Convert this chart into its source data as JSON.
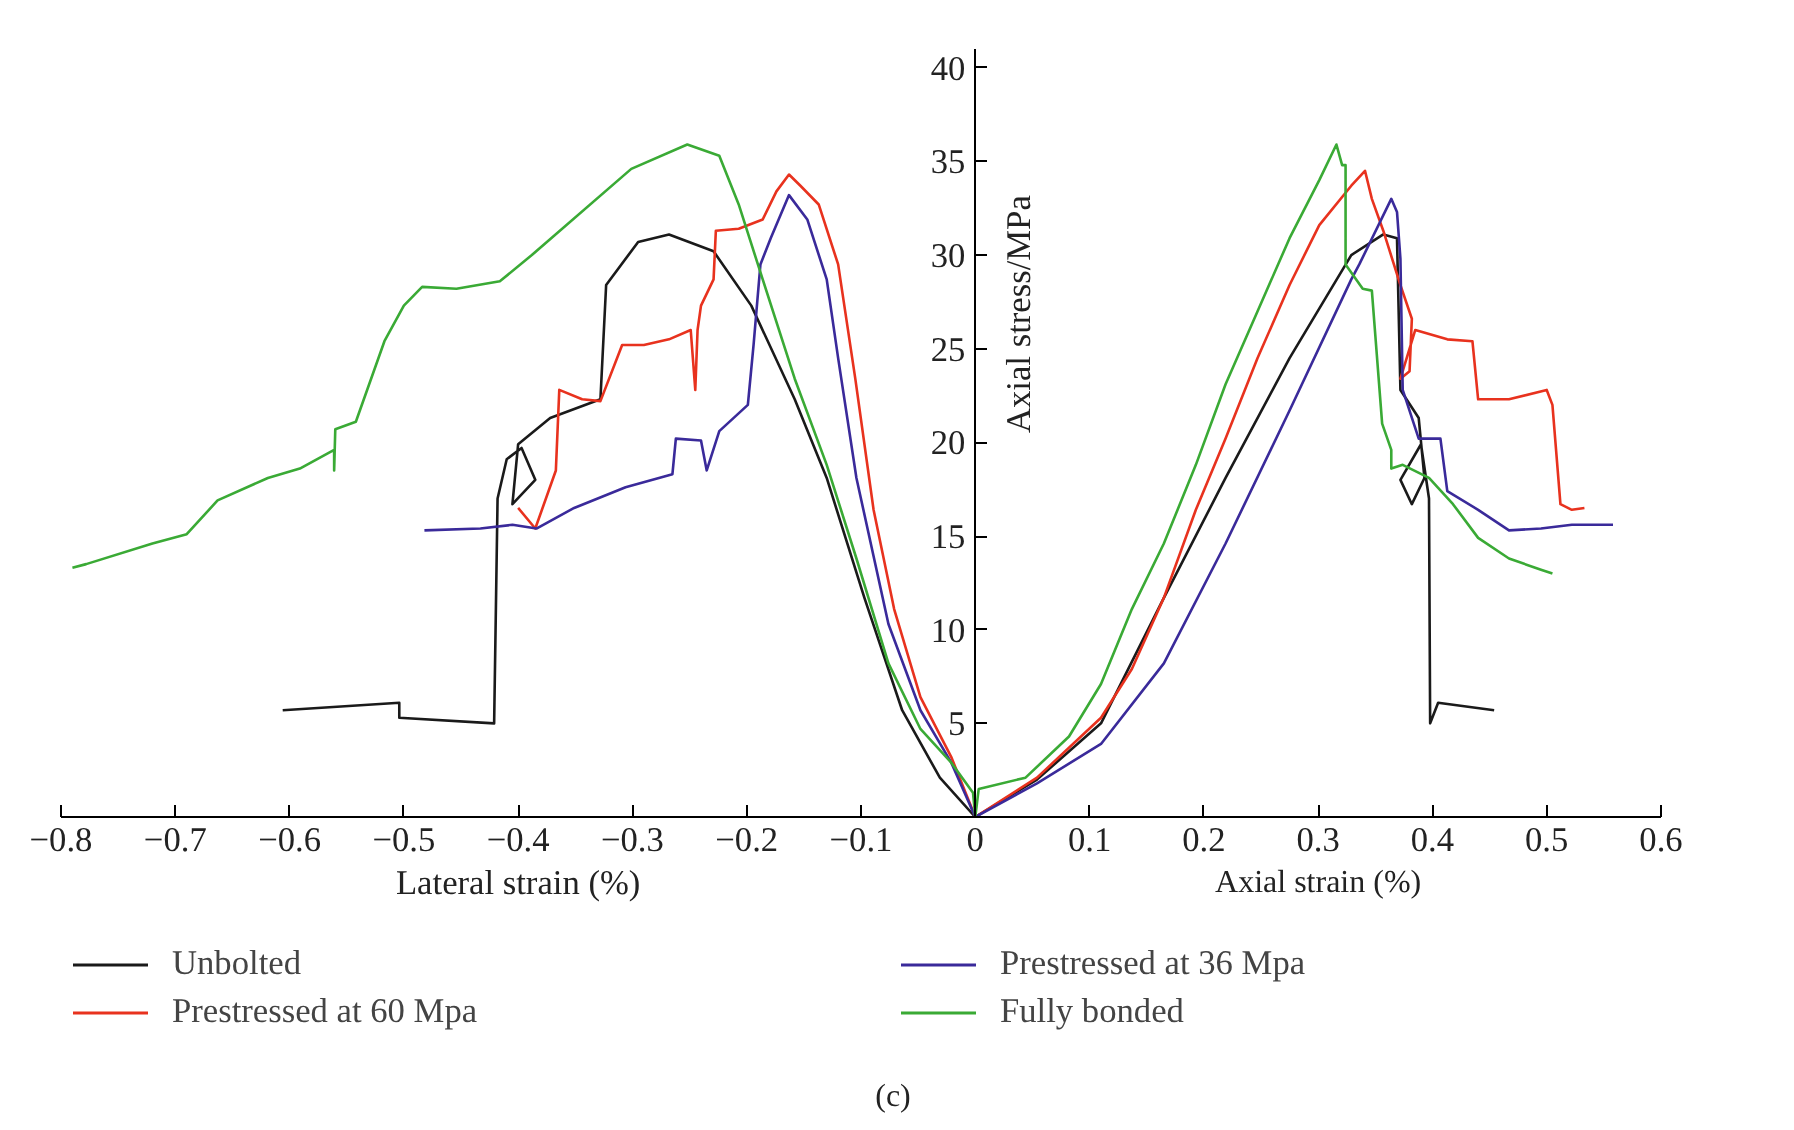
{
  "chart_data": {
    "type": "line",
    "xlabel": "Lateral strain (%)",
    "ylabel": "Axial stress/MPa",
    "annotations": [
      "Axial strain (%)",
      "(c)"
    ],
    "xlim": [
      -0.8,
      0.6
    ],
    "ylim": [
      0,
      41
    ],
    "xticks": [
      {
        "value": -0.8,
        "label": "−0.8"
      },
      {
        "value": -0.7,
        "label": "−0.7"
      },
      {
        "value": -0.6,
        "label": "−0.6"
      },
      {
        "value": -0.5,
        "label": "−0.5"
      },
      {
        "value": -0.4,
        "label": "−0.4"
      },
      {
        "value": -0.3,
        "label": "−0.3"
      },
      {
        "value": -0.2,
        "label": "−0.2"
      },
      {
        "value": -0.1,
        "label": "−0.1"
      },
      0,
      0.1,
      0.2,
      0.3,
      0.4,
      0.5,
      0.6
    ],
    "yticks": [
      5,
      10,
      15,
      20,
      25,
      30,
      35,
      40
    ],
    "grid": false,
    "legend": "bottom",
    "marker": "none",
    "line_style": "solid",
    "series": [
      {
        "name": "Unbolted",
        "color": "#1a1a1a",
        "x": [
          -0.606,
          -0.504,
          -0.504,
          -0.421,
          -0.418,
          -0.41,
          -0.397,
          -0.385,
          -0.405,
          -0.4,
          -0.372,
          -0.328,
          -0.323,
          -0.295,
          -0.268,
          -0.229,
          -0.196,
          -0.158,
          -0.13,
          -0.097,
          -0.064,
          -0.031,
          0,
          0.054,
          0.11,
          0.165,
          0.219,
          0.275,
          0.329,
          0.357,
          0.369,
          0.372,
          0.388,
          0.393,
          0.382,
          0.372,
          0.39,
          0.397,
          0.398,
          0.405,
          0.454
        ],
        "values": [
          5.7,
          6.1,
          5.3,
          5.0,
          17.0,
          19.1,
          19.7,
          18.0,
          16.7,
          19.9,
          21.3,
          22.3,
          28.4,
          30.7,
          31.1,
          30.2,
          27.3,
          22.3,
          18.1,
          11.7,
          5.7,
          2.1,
          0,
          2.0,
          5.0,
          11.7,
          18.1,
          24.5,
          30.0,
          31.1,
          30.9,
          22.8,
          21.3,
          18.1,
          16.7,
          18.0,
          19.9,
          17.0,
          5.0,
          6.1,
          5.7
        ]
      },
      {
        "name": "Prestressed at 60 Mpa",
        "color": "#e8321e",
        "x": [
          -0.4,
          -0.385,
          -0.367,
          -0.364,
          -0.344,
          -0.328,
          -0.309,
          -0.29,
          -0.268,
          -0.249,
          -0.245,
          -0.243,
          -0.24,
          -0.229,
          -0.227,
          -0.207,
          -0.186,
          -0.174,
          -0.163,
          -0.153,
          -0.137,
          -0.12,
          -0.105,
          -0.089,
          -0.071,
          -0.048,
          -0.021,
          0,
          0.054,
          0.11,
          0.137,
          0.165,
          0.193,
          0.219,
          0.247,
          0.275,
          0.301,
          0.329,
          0.341,
          0.347,
          0.357,
          0.372,
          0.382,
          0.38,
          0.372,
          0.385,
          0.413,
          0.435,
          0.44,
          0.467,
          0.5,
          0.505,
          0.512,
          0.522,
          0.533
        ],
        "values": [
          16.5,
          15.4,
          18.5,
          22.8,
          22.3,
          22.2,
          25.2,
          25.2,
          25.5,
          26.0,
          22.8,
          26.0,
          27.3,
          28.7,
          31.3,
          31.4,
          31.9,
          33.4,
          34.3,
          33.7,
          32.7,
          29.5,
          23.4,
          16.4,
          11.1,
          6.4,
          3.2,
          0,
          2.1,
          5.3,
          7.9,
          11.7,
          16.4,
          20.2,
          24.5,
          28.4,
          31.6,
          33.7,
          34.5,
          33.0,
          31.3,
          28.4,
          26.6,
          23.8,
          23.4,
          26.0,
          25.5,
          25.4,
          22.3,
          22.3,
          22.8,
          22.0,
          16.7,
          16.4,
          16.5
        ]
      },
      {
        "name": "Prestressed at 36 Mpa",
        "color": "#3a2a9a",
        "x": [
          -0.482,
          -0.433,
          -0.405,
          -0.384,
          -0.351,
          -0.306,
          -0.265,
          -0.262,
          -0.24,
          -0.235,
          -0.224,
          -0.199,
          -0.194,
          -0.188,
          -0.179,
          -0.163,
          -0.147,
          -0.13,
          -0.12,
          -0.104,
          -0.076,
          -0.048,
          -0.021,
          0,
          0.054,
          0.11,
          0.165,
          0.219,
          0.275,
          0.329,
          0.336,
          0.364,
          0.369,
          0.372,
          0.374,
          0.388,
          0.407,
          0.413,
          0.44,
          0.467,
          0.495,
          0.522,
          0.558
        ],
        "values": [
          15.3,
          15.4,
          15.6,
          15.4,
          16.5,
          17.6,
          18.3,
          20.2,
          20.1,
          18.5,
          20.6,
          22.0,
          25.2,
          29.5,
          30.9,
          33.2,
          31.9,
          28.7,
          24.5,
          18.1,
          10.3,
          5.7,
          2.9,
          0,
          1.8,
          3.9,
          8.2,
          14.6,
          21.7,
          28.7,
          29.5,
          33.0,
          32.3,
          29.8,
          22.8,
          20.2,
          20.2,
          17.4,
          16.4,
          15.3,
          15.4,
          15.6,
          15.6
        ]
      },
      {
        "name": "Fully bonded",
        "color": "#3aaa35",
        "x": [
          -0.79,
          -0.778,
          -0.72,
          -0.69,
          -0.663,
          -0.619,
          -0.591,
          -0.561,
          -0.561,
          -0.56,
          -0.542,
          -0.517,
          -0.5,
          -0.484,
          -0.454,
          -0.416,
          -0.388,
          -0.301,
          -0.252,
          -0.224,
          -0.207,
          -0.186,
          -0.158,
          -0.13,
          -0.104,
          -0.076,
          -0.048,
          -0.021,
          -0.002,
          0,
          0.003,
          0.044,
          0.082,
          0.11,
          0.137,
          0.165,
          0.193,
          0.219,
          0.247,
          0.275,
          0.301,
          0.316,
          0.321,
          0.324,
          0.324,
          0.339,
          0.347,
          0.356,
          0.364,
          0.364,
          0.374,
          0.397,
          0.418,
          0.44,
          0.467,
          0.495,
          0.505
        ],
        "values": [
          13.3,
          13.5,
          14.6,
          15.1,
          16.9,
          18.1,
          18.6,
          19.6,
          18.5,
          20.7,
          21.1,
          25.4,
          27.3,
          28.3,
          28.2,
          28.6,
          30.0,
          34.6,
          35.9,
          35.3,
          32.7,
          28.7,
          23.4,
          18.8,
          13.8,
          8.2,
          4.7,
          2.9,
          1.3,
          0,
          1.5,
          2.1,
          4.3,
          7.1,
          11.1,
          14.6,
          18.8,
          23.1,
          27.0,
          30.9,
          34.0,
          35.9,
          34.8,
          34.8,
          29.5,
          28.2,
          28.1,
          21.0,
          19.6,
          18.6,
          18.8,
          18.1,
          16.7,
          14.9,
          13.8,
          13.2,
          13.0
        ]
      }
    ]
  }
}
